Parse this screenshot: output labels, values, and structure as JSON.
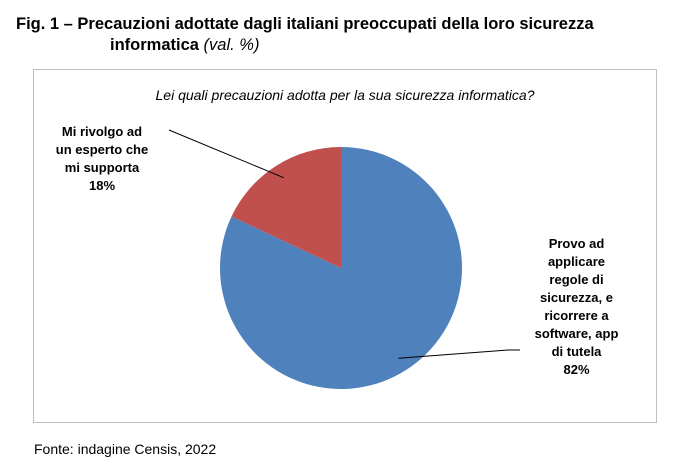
{
  "figure": {
    "title_line1": "Fig. 1 – Precauzioni adottate dagli italiani preoccupati della loro sicurezza",
    "title_line2": "informatica",
    "unit": "(val. %)"
  },
  "source": "Fonte: indagine Censis, 2022",
  "chart_data": {
    "type": "pie",
    "title": "Lei quali precauzioni adotta per la sua sicurezza informatica?",
    "slices": [
      {
        "label": "Provo ad applicare regole di sicurezza, e ricorrere a software, app di tutela",
        "value": 82,
        "value_label": "82%",
        "color": "#4f81bd"
      },
      {
        "label": "Mi rivolgo ad un esperto che mi supporta",
        "value": 18,
        "value_label": "18%",
        "color": "#c0504d"
      }
    ],
    "label_lines": {
      "large": [
        "Provo ad",
        "applicare",
        "regole di",
        "sicurezza, e",
        "ricorrere a",
        "software, app",
        "di tutela"
      ],
      "small": [
        "Mi rivolgo ad",
        "un esperto che",
        "mi supporta"
      ]
    }
  }
}
